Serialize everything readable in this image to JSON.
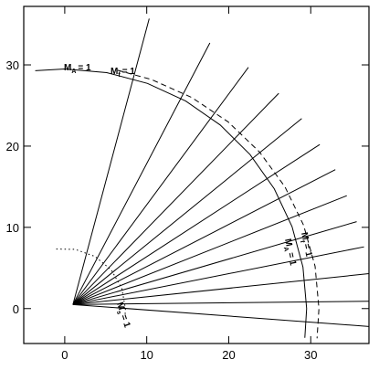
{
  "chart_data": {
    "type": "line",
    "xlim": [
      -5,
      37.1
    ],
    "ylim": [
      -4.3,
      37.2
    ],
    "xticks": [
      0,
      10,
      20,
      30
    ],
    "yticks": [
      0,
      10,
      20,
      30
    ],
    "color": "#000000",
    "series": [
      {
        "style": "solid",
        "x": [
          1,
          10.3
        ],
        "y": [
          0.5,
          35.7
        ]
      },
      {
        "style": "solid",
        "x": [
          1,
          17.7
        ],
        "y": [
          0.5,
          32.7
        ]
      },
      {
        "style": "solid",
        "x": [
          1,
          22.4
        ],
        "y": [
          0.5,
          29.7
        ]
      },
      {
        "style": "solid",
        "x": [
          1,
          26.1
        ],
        "y": [
          0.5,
          26.5
        ]
      },
      {
        "style": "solid",
        "x": [
          1,
          28.9
        ],
        "y": [
          0.5,
          23.4
        ]
      },
      {
        "style": "solid",
        "x": [
          1,
          31.1
        ],
        "y": [
          0.5,
          20.2
        ]
      },
      {
        "style": "solid",
        "x": [
          1,
          33
        ],
        "y": [
          0.5,
          17.1
        ]
      },
      {
        "style": "solid",
        "x": [
          1,
          34.4
        ],
        "y": [
          0.5,
          13.9
        ]
      },
      {
        "style": "solid",
        "x": [
          1,
          35.6
        ],
        "y": [
          0.5,
          10.7
        ]
      },
      {
        "style": "solid",
        "x": [
          1,
          36.5
        ],
        "y": [
          0.5,
          7.6
        ]
      },
      {
        "style": "solid",
        "x": [
          1,
          37.1
        ],
        "y": [
          0.5,
          4.3
        ]
      },
      {
        "style": "solid",
        "x": [
          1,
          37.1
        ],
        "y": [
          0.5,
          0.9
        ]
      },
      {
        "style": "solid",
        "x": [
          1,
          37.1
        ],
        "y": [
          0.5,
          -2.2
        ]
      },
      {
        "style": "solid",
        "x": [
          -3.6,
          0,
          5.12,
          10.09,
          14.75,
          18.96,
          22.6,
          25.55,
          27.72,
          29.05,
          29.5,
          29.28
        ],
        "y": [
          29.28,
          29.5,
          29.05,
          27.72,
          25.55,
          22.6,
          18.96,
          14.75,
          10.09,
          5.12,
          0,
          -3.6
        ]
      },
      {
        "style": "dashed",
        "x": [
          6.45,
          10.6,
          15.5,
          19.93,
          23.75,
          26.85,
          29.13,
          30.53,
          31,
          30.77
        ],
        "y": [
          29.34,
          28.19,
          25.98,
          22.98,
          19.28,
          15,
          10.26,
          5.21,
          0,
          -3.66
        ]
      },
      {
        "style": "dotted",
        "x": [
          -1.03,
          1.28,
          3.7,
          5.67,
          6.95,
          7.4,
          7.36
        ],
        "y": [
          7.33,
          7.29,
          6.41,
          4.76,
          2.53,
          0,
          -0.77
        ]
      }
    ],
    "annotations": [
      {
        "text": "M",
        "sub": "A",
        "tail": "= 1"
      },
      {
        "text": "M",
        "sub": "f",
        "tail": "= 1"
      },
      {
        "text": "M",
        "sub": "A",
        "tail": "= 1"
      },
      {
        "text": "M",
        "sub": "f",
        "tail": "= 1"
      },
      {
        "text": "M",
        "sub": "s",
        "tail": "= 1"
      }
    ]
  }
}
